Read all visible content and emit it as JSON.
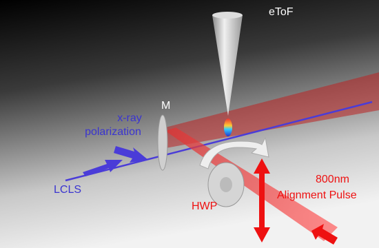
{
  "labels": {
    "etof": "eToF",
    "mirror": "M",
    "xray_polarization": [
      "x-ray",
      "polarization"
    ],
    "lcls": "LCLS",
    "hwp": "HWP",
    "alignment_pulse": [
      "800nm",
      "Alignment Pulse"
    ]
  }
}
